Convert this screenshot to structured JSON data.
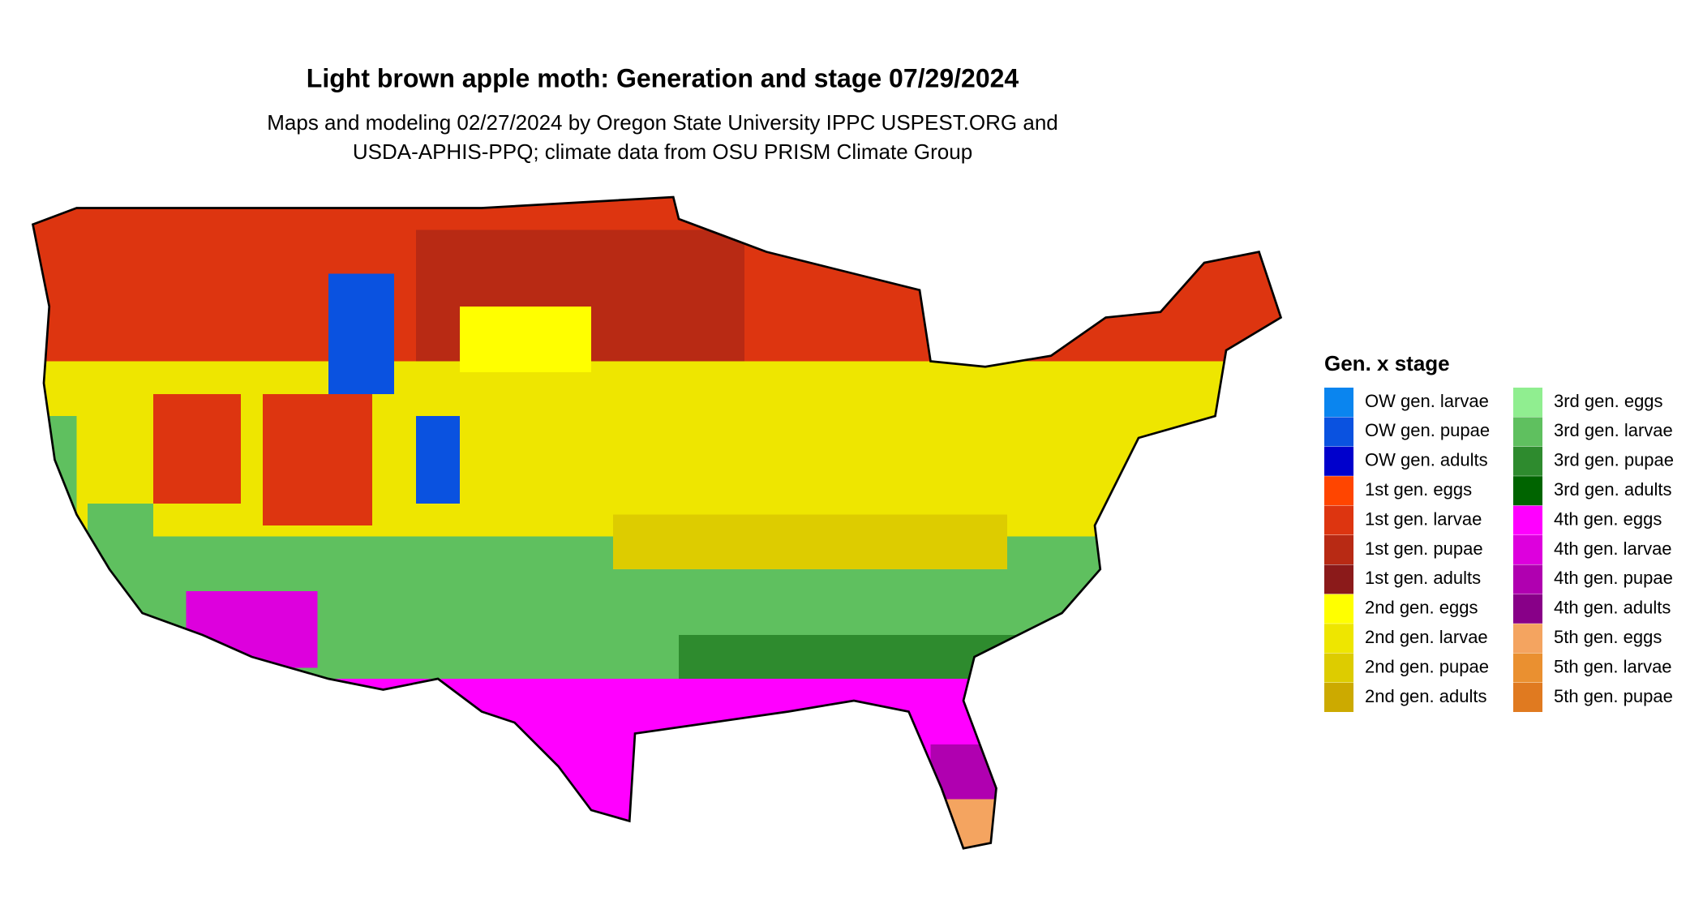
{
  "title": "Light brown apple moth: Generation and stage 07/29/2024",
  "subtitle": [
    "Maps and modeling 02/27/2024 by Oregon State University IPPC USPEST.ORG and",
    "USDA-APHIS-PPQ; climate data from OSU PRISM Climate Group"
  ],
  "legend": {
    "title": "Gen. x stage",
    "items": [
      {
        "label": "OW gen. larvae",
        "color": "#0a85ef"
      },
      {
        "label": "OW gen. pupae",
        "color": "#0a52e0"
      },
      {
        "label": "OW gen. adults",
        "color": "#0000cc"
      },
      {
        "label": "1st gen. eggs",
        "color": "#ff4500"
      },
      {
        "label": "1st gen. larvae",
        "color": "#dd3510"
      },
      {
        "label": "1st gen. pupae",
        "color": "#b82a14"
      },
      {
        "label": "1st gen. adults",
        "color": "#8b1a1a"
      },
      {
        "label": "2nd gen. eggs",
        "color": "#ffff00"
      },
      {
        "label": "2nd gen. larvae",
        "color": "#eee600"
      },
      {
        "label": "2nd gen. pupae",
        "color": "#ddcc00"
      },
      {
        "label": "2nd gen. adults",
        "color": "#ccaa00"
      },
      {
        "label": "3rd gen. eggs",
        "color": "#90ee90"
      },
      {
        "label": "3rd gen. larvae",
        "color": "#5fc05f"
      },
      {
        "label": "3rd gen. pupae",
        "color": "#2e8b2e"
      },
      {
        "label": "3rd gen. adults",
        "color": "#006400"
      },
      {
        "label": "4th gen. eggs",
        "color": "#ff00ff"
      },
      {
        "label": "4th gen. larvae",
        "color": "#dd00dd"
      },
      {
        "label": "4th gen. pupae",
        "color": "#b000b0"
      },
      {
        "label": "4th gen. adults",
        "color": "#880088"
      },
      {
        "label": "5th gen. eggs",
        "color": "#f4a460"
      },
      {
        "label": "5th gen. larvae",
        "color": "#ea9030"
      },
      {
        "label": "5th gen. pupae",
        "color": "#e07a20"
      }
    ]
  }
}
